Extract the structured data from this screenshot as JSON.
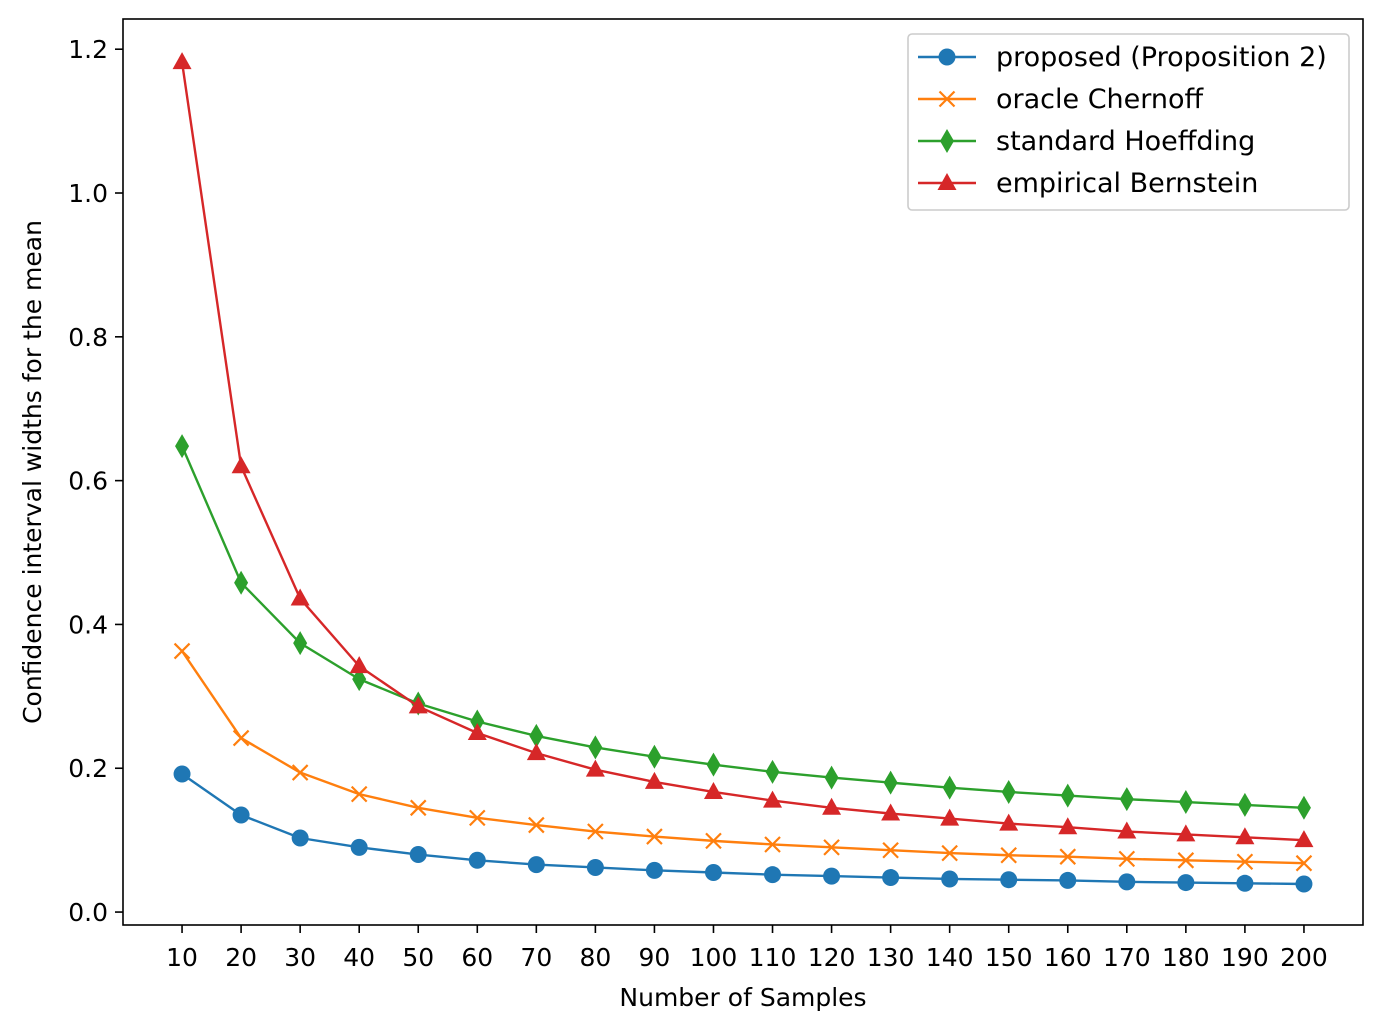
{
  "chart_data": {
    "type": "line",
    "title": "",
    "xlabel": "Number of Samples",
    "ylabel": "Confidence interval widths for the mean",
    "x": [
      10,
      20,
      30,
      40,
      50,
      60,
      70,
      80,
      90,
      100,
      110,
      120,
      130,
      140,
      150,
      160,
      170,
      180,
      190,
      200
    ],
    "xticks": [
      "10",
      "20",
      "30",
      "40",
      "50",
      "60",
      "70",
      "80",
      "90",
      "100",
      "110",
      "120",
      "130",
      "140",
      "150",
      "160",
      "170",
      "180",
      "190",
      "200"
    ],
    "xlim": [
      0,
      210
    ],
    "ylim": [
      -0.018,
      1.242
    ],
    "yticks": [
      "0.0",
      "0.2",
      "0.4",
      "0.6",
      "0.8",
      "1.0",
      "1.2"
    ],
    "grid": false,
    "legend_position": "top-right",
    "series": [
      {
        "name": "proposed (Proposition 2)",
        "color": "#1f77b4",
        "marker": "circle",
        "values": [
          0.192,
          0.135,
          0.103,
          0.09,
          0.08,
          0.072,
          0.066,
          0.062,
          0.058,
          0.055,
          0.052,
          0.05,
          0.048,
          0.046,
          0.045,
          0.044,
          0.042,
          0.041,
          0.04,
          0.039
        ]
      },
      {
        "name": "oracle Chernoff",
        "color": "#ff7f0e",
        "marker": "x",
        "values": [
          0.363,
          0.242,
          0.194,
          0.164,
          0.145,
          0.131,
          0.121,
          0.112,
          0.105,
          0.099,
          0.094,
          0.09,
          0.086,
          0.082,
          0.079,
          0.077,
          0.074,
          0.072,
          0.07,
          0.068
        ]
      },
      {
        "name": "standard Hoeffding",
        "color": "#2ca02c",
        "marker": "diamond",
        "values": [
          0.648,
          0.458,
          0.374,
          0.324,
          0.29,
          0.265,
          0.245,
          0.229,
          0.216,
          0.205,
          0.195,
          0.187,
          0.18,
          0.173,
          0.167,
          0.162,
          0.157,
          0.153,
          0.149,
          0.145
        ]
      },
      {
        "name": "empirical Bernstein",
        "color": "#d62728",
        "marker": "triangle",
        "values": [
          1.182,
          0.62,
          0.436,
          0.342,
          0.286,
          0.249,
          0.221,
          0.198,
          0.181,
          0.167,
          0.155,
          0.145,
          0.137,
          0.13,
          0.123,
          0.118,
          0.112,
          0.108,
          0.104,
          0.1
        ]
      }
    ]
  }
}
